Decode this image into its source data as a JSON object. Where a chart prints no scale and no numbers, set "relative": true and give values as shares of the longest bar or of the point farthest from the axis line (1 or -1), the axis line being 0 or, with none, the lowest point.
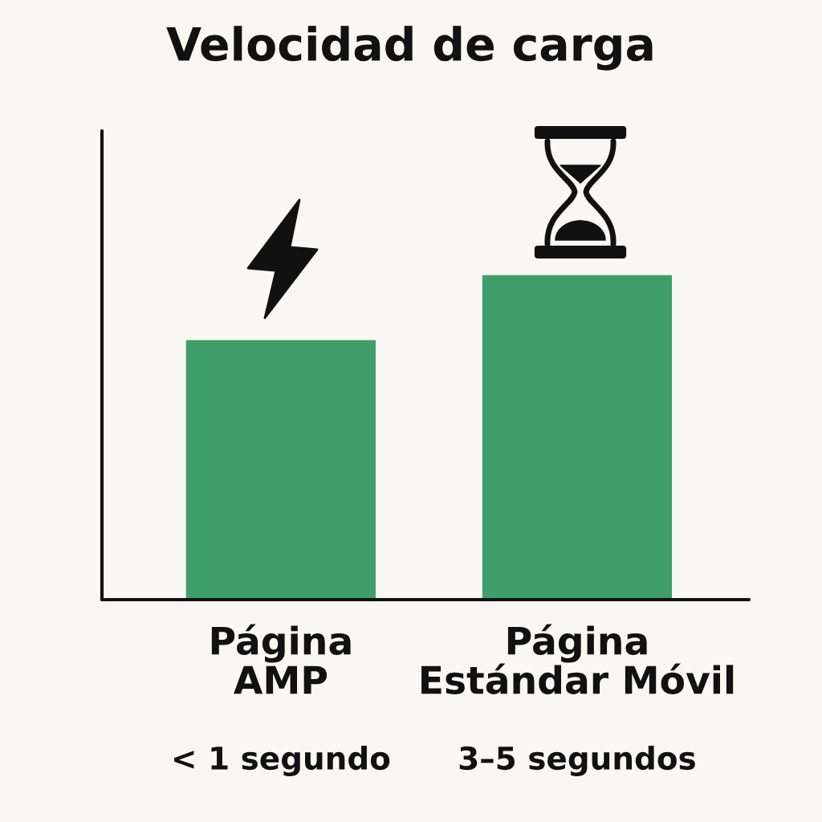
{
  "chart_data": {
    "type": "bar",
    "title": "Velocidad de carga",
    "categories": [
      "Página\nAMP",
      "Página\nEstándar Móvil"
    ],
    "values": [
      0.8,
      1
    ],
    "relative": true,
    "color": "#3f9e69",
    "annotations": [
      "< 1 segundo",
      "3–5 segundos"
    ]
  }
}
